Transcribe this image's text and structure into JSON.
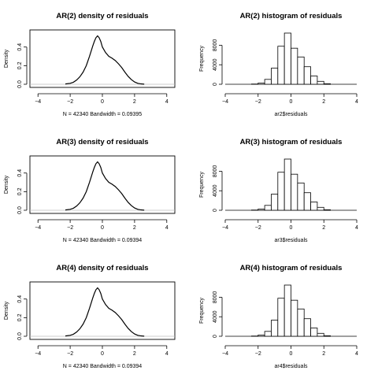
{
  "chart_data": [
    {
      "type": "line",
      "title": "AR(2) density of residuals",
      "xlabel": "N = 42340   Bandwidth = 0.09395",
      "ylabel": "Density",
      "xlim": [
        -4.5,
        4.5
      ],
      "ylim": [
        0,
        0.55
      ],
      "xticks": [
        -4,
        -2,
        0,
        2,
        4
      ],
      "yticks": [
        0.0,
        0.2,
        0.4
      ],
      "x": [
        -2.3,
        -2.0,
        -1.8,
        -1.6,
        -1.4,
        -1.2,
        -1.0,
        -0.8,
        -0.6,
        -0.5,
        -0.4,
        -0.3,
        -0.2,
        -0.1,
        0.0,
        0.2,
        0.4,
        0.6,
        0.8,
        1.0,
        1.2,
        1.4,
        1.6,
        1.8,
        2.0,
        2.2,
        2.4,
        2.6
      ],
      "y": [
        0.003,
        0.01,
        0.022,
        0.045,
        0.08,
        0.13,
        0.2,
        0.3,
        0.41,
        0.46,
        0.5,
        0.52,
        0.5,
        0.46,
        0.4,
        0.34,
        0.3,
        0.28,
        0.255,
        0.22,
        0.18,
        0.13,
        0.085,
        0.05,
        0.025,
        0.01,
        0.004,
        0.001
      ]
    },
    {
      "type": "bar",
      "title": "AR(2) histogram of residuals",
      "xlabel": "ar2$residuals",
      "ylabel": "Frequency",
      "xlim": [
        -4,
        4
      ],
      "ylim": [
        0,
        10500
      ],
      "xticks": [
        -4,
        -2,
        0,
        2,
        4
      ],
      "yticks": [
        0,
        4000,
        8000
      ],
      "bin_width": 0.4,
      "bins_start": [
        -2.4,
        -2.0,
        -1.6,
        -1.2,
        -0.8,
        -0.4,
        0.0,
        0.4,
        0.8,
        1.2,
        1.6,
        2.0
      ],
      "values": [
        50,
        250,
        1000,
        3300,
        7800,
        10500,
        7400,
        5600,
        3600,
        1700,
        600,
        100
      ]
    },
    {
      "type": "line",
      "title": "AR(3) density of residuals",
      "xlabel": "N = 42340   Bandwidth = 0.09394",
      "ylabel": "Density",
      "xlim": [
        -4.5,
        4.5
      ],
      "ylim": [
        0,
        0.55
      ],
      "xticks": [
        -4,
        -2,
        0,
        2,
        4
      ],
      "yticks": [
        0.0,
        0.2,
        0.4
      ],
      "x": [
        -2.3,
        -2.0,
        -1.8,
        -1.6,
        -1.4,
        -1.2,
        -1.0,
        -0.8,
        -0.6,
        -0.5,
        -0.4,
        -0.3,
        -0.2,
        -0.1,
        0.0,
        0.2,
        0.4,
        0.6,
        0.8,
        1.0,
        1.2,
        1.4,
        1.6,
        1.8,
        2.0,
        2.2,
        2.4,
        2.6
      ],
      "y": [
        0.003,
        0.01,
        0.022,
        0.045,
        0.08,
        0.13,
        0.2,
        0.3,
        0.41,
        0.46,
        0.5,
        0.52,
        0.5,
        0.46,
        0.4,
        0.34,
        0.3,
        0.28,
        0.255,
        0.22,
        0.18,
        0.13,
        0.085,
        0.05,
        0.025,
        0.01,
        0.004,
        0.001
      ]
    },
    {
      "type": "bar",
      "title": "AR(3) histogram of residuals",
      "xlabel": "ar3$residuals",
      "ylabel": "Frequency",
      "xlim": [
        -4,
        4
      ],
      "ylim": [
        0,
        10500
      ],
      "xticks": [
        -4,
        -2,
        0,
        2,
        4
      ],
      "yticks": [
        0,
        4000,
        8000
      ],
      "bin_width": 0.4,
      "bins_start": [
        -2.4,
        -2.0,
        -1.6,
        -1.2,
        -0.8,
        -0.4,
        0.0,
        0.4,
        0.8,
        1.2,
        1.6,
        2.0
      ],
      "values": [
        50,
        250,
        1000,
        3300,
        7800,
        10500,
        7400,
        5600,
        3600,
        1700,
        600,
        100
      ]
    },
    {
      "type": "line",
      "title": "AR(4) density of residuals",
      "xlabel": "N = 42340   Bandwidth = 0.09394",
      "ylabel": "Density",
      "xlim": [
        -4.5,
        4.5
      ],
      "ylim": [
        0,
        0.55
      ],
      "xticks": [
        -4,
        -2,
        0,
        2,
        4
      ],
      "yticks": [
        0.0,
        0.2,
        0.4
      ],
      "x": [
        -2.3,
        -2.0,
        -1.8,
        -1.6,
        -1.4,
        -1.2,
        -1.0,
        -0.8,
        -0.6,
        -0.5,
        -0.4,
        -0.3,
        -0.2,
        -0.1,
        0.0,
        0.2,
        0.4,
        0.6,
        0.8,
        1.0,
        1.2,
        1.4,
        1.6,
        1.8,
        2.0,
        2.2,
        2.4,
        2.6
      ],
      "y": [
        0.003,
        0.01,
        0.022,
        0.045,
        0.08,
        0.13,
        0.2,
        0.3,
        0.41,
        0.46,
        0.5,
        0.52,
        0.5,
        0.46,
        0.4,
        0.34,
        0.3,
        0.28,
        0.255,
        0.22,
        0.18,
        0.13,
        0.085,
        0.05,
        0.025,
        0.01,
        0.004,
        0.001
      ]
    },
    {
      "type": "bar",
      "title": "AR(4) histogram of residuals",
      "xlabel": "ar4$residuals",
      "ylabel": "Frequency",
      "xlim": [
        -4,
        4
      ],
      "ylim": [
        0,
        10500
      ],
      "xticks": [
        -4,
        -2,
        0,
        2,
        4
      ],
      "yticks": [
        0,
        4000,
        8000
      ],
      "bin_width": 0.4,
      "bins_start": [
        -2.4,
        -2.0,
        -1.6,
        -1.2,
        -0.8,
        -0.4,
        0.0,
        0.4,
        0.8,
        1.2,
        1.6,
        2.0
      ],
      "values": [
        50,
        250,
        1000,
        3300,
        7800,
        10500,
        7400,
        5600,
        3600,
        1700,
        600,
        100
      ]
    }
  ]
}
